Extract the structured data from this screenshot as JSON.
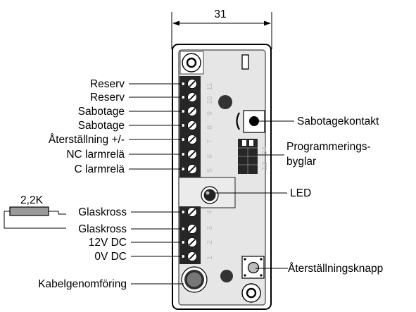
{
  "dimension": {
    "value": "31"
  },
  "left_labels": [
    "Reserv",
    "Reserv",
    "Sabotage",
    "Sabotage",
    "Återställning +/-",
    "NC larmrelä",
    "C larmrelä",
    "Glaskross",
    "Glaskross",
    "12V DC",
    "0V DC",
    "Kabelgenomföring"
  ],
  "right_labels": {
    "tamper_switch": "Sabotagekontakt",
    "jumpers_line1": "Programmerings-",
    "jumpers_line2": "byglar",
    "led": "LED",
    "reset_button": "Återställningsknapp"
  },
  "resistor": {
    "value": "2,2K"
  },
  "terminal_numbers_upper": [
    "11",
    "10",
    "9",
    "8",
    "7",
    "6",
    "5"
  ],
  "terminal_numbers_lower": [
    "4",
    "3",
    "2",
    "1"
  ],
  "jumper_numbers": [
    "34",
    "12"
  ],
  "colors": {
    "board": "#e6e6e6",
    "terminal_block": "#262626",
    "outline": "#000000"
  }
}
